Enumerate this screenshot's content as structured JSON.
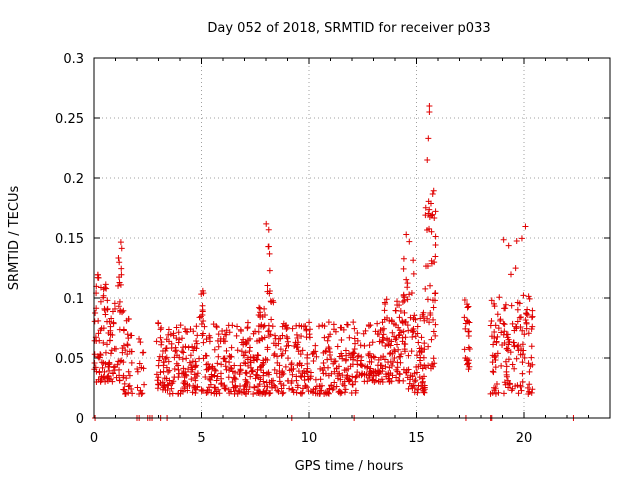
{
  "chart_data": {
    "type": "scatter",
    "title": "Day 052 of 2018, SRMTID for receiver p033",
    "xlabel": "GPS time / hours",
    "ylabel": "SRMTID / TECUs",
    "xlim": [
      0,
      24
    ],
    "ylim": [
      0,
      0.3
    ],
    "xticks": [
      0,
      5,
      10,
      15,
      20
    ],
    "xtick_labels": [
      "0",
      "5",
      "10",
      "15",
      "20"
    ],
    "yticks": [
      0,
      0.05,
      0.1,
      0.15,
      0.2,
      0.25,
      0.3
    ],
    "ytick_labels": [
      "0",
      "0.05",
      "0.1",
      "0.15",
      "0.2",
      "0.25",
      "0.3"
    ],
    "grid": true,
    "marker": "+",
    "color": "#e00000",
    "series": [
      {
        "name": "SRMTID",
        "clusters": [
          {
            "x_range": [
              0.0,
              0.7
            ],
            "y_min": 0.03,
            "y_max": 0.12,
            "count": 70
          },
          {
            "x_range": [
              0.7,
              1.3
            ],
            "y_min": 0.03,
            "y_max": 0.1,
            "count": 45
          },
          {
            "x_range": [
              1.1,
              1.3
            ],
            "y_min": 0.11,
            "y_max": 0.15,
            "count": 10
          },
          {
            "x_range": [
              1.3,
              1.8
            ],
            "y_min": 0.02,
            "y_max": 0.09,
            "count": 40
          },
          {
            "x_range": [
              2.0,
              2.4
            ],
            "y_min": 0.02,
            "y_max": 0.07,
            "count": 15
          },
          {
            "x_range": [
              2.9,
              4.9
            ],
            "y_min": 0.02,
            "y_max": 0.08,
            "count": 150
          },
          {
            "x_range": [
              4.9,
              5.1
            ],
            "y_min": 0.08,
            "y_max": 0.12,
            "count": 10
          },
          {
            "x_range": [
              5.0,
              7.6
            ],
            "y_min": 0.02,
            "y_max": 0.08,
            "count": 190
          },
          {
            "x_range": [
              7.6,
              8.4
            ],
            "y_min": 0.02,
            "y_max": 0.1,
            "count": 80
          },
          {
            "x_range": [
              8.0,
              8.2
            ],
            "y_min": 0.1,
            "y_max": 0.165,
            "count": 10
          },
          {
            "x_range": [
              8.4,
              12.2
            ],
            "y_min": 0.02,
            "y_max": 0.08,
            "count": 260
          },
          {
            "x_range": [
              12.2,
              13.4
            ],
            "y_min": 0.03,
            "y_max": 0.08,
            "count": 80
          },
          {
            "x_range": [
              13.4,
              14.6
            ],
            "y_min": 0.03,
            "y_max": 0.1,
            "count": 110
          },
          {
            "x_range": [
              14.4,
              14.9
            ],
            "y_min": 0.1,
            "y_max": 0.155,
            "count": 14
          },
          {
            "x_range": [
              14.6,
              15.4
            ],
            "y_min": 0.02,
            "y_max": 0.09,
            "count": 70
          },
          {
            "x_range": [
              15.4,
              15.9
            ],
            "y_min": 0.04,
            "y_max": 0.19,
            "count": 50
          },
          {
            "x_range": [
              17.2,
              17.5
            ],
            "y_min": 0.04,
            "y_max": 0.1,
            "count": 25
          },
          {
            "x_range": [
              18.4,
              20.4
            ],
            "y_min": 0.02,
            "y_max": 0.1,
            "count": 140
          },
          {
            "x_range": [
              18.8,
              20.3
            ],
            "y_min": 0.1,
            "y_max": 0.16,
            "count": 10
          }
        ],
        "outliers": [
          [
            15.6,
            0.26
          ],
          [
            15.6,
            0.255
          ],
          [
            15.55,
            0.233
          ],
          [
            15.5,
            0.215
          ]
        ],
        "zero_points": [
          0.05,
          2.0,
          2.1,
          2.5,
          2.6,
          2.7,
          3.1,
          3.4,
          9.2,
          12.1,
          17.3,
          18.45,
          18.5,
          22.3
        ]
      }
    ]
  }
}
